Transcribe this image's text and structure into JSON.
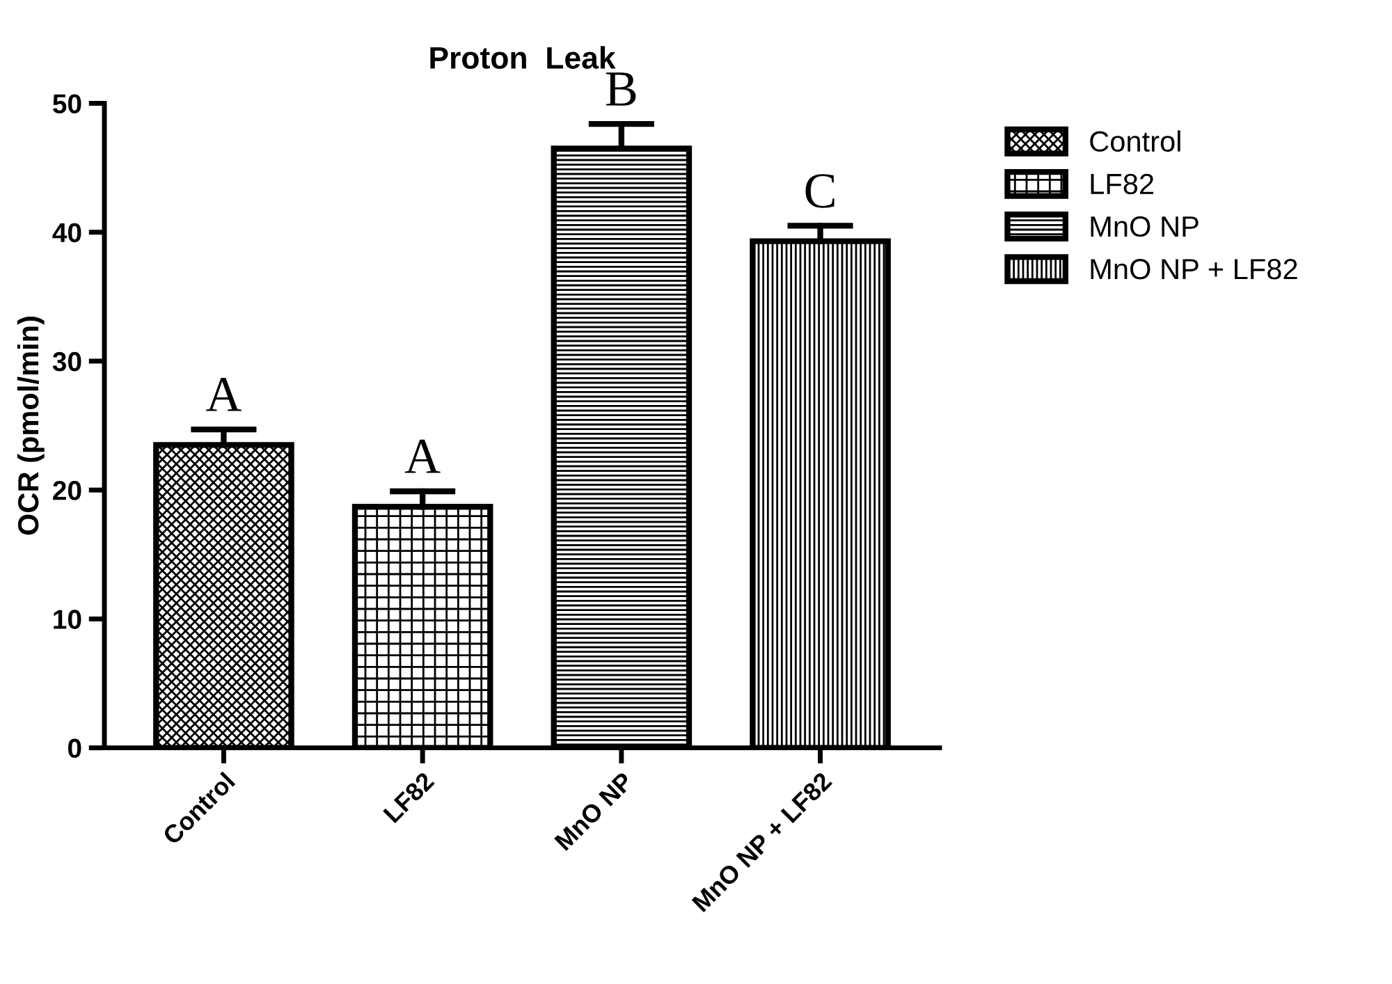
{
  "chart_data": {
    "type": "bar",
    "title": "Proton  Leak",
    "ylabel": "OCR (pmol/min)",
    "categories": [
      "Control",
      "LF82",
      "MnO NP",
      "MnO NP + LF82"
    ],
    "stacked": true,
    "series": [
      {
        "name": "Control",
        "color": "#000000",
        "values": [
          23.5,
          null,
          null,
          null
        ],
        "errors": [
          [
            23.5,
            24.7
          ],
          null,
          null,
          null
        ]
      },
      {
        "name": "LF82",
        "color": "#000000",
        "values": [
          null,
          18.7,
          null,
          null
        ],
        "errors": [
          null,
          [
            18.7,
            19.9
          ],
          null,
          null
        ]
      },
      {
        "name": "MnO NP",
        "color": "#000000",
        "values": [
          null,
          null,
          46.5,
          null
        ],
        "errors": [
          null,
          null,
          [
            46.5,
            48.4
          ],
          null
        ]
      },
      {
        "name": "MnO NP + LF82",
        "color": "#000000",
        "values": [
          null,
          null,
          null,
          39.3
        ],
        "errors": [
          null,
          null,
          null,
          [
            39.3,
            40.5
          ]
        ]
      }
    ],
    "ylim": [
      0,
      50
    ],
    "yticks": [
      0,
      10,
      20,
      30,
      40,
      50
    ],
    "annotations": [
      "A",
      "A",
      "B",
      "C"
    ],
    "grid": false,
    "legend": "top right"
  }
}
